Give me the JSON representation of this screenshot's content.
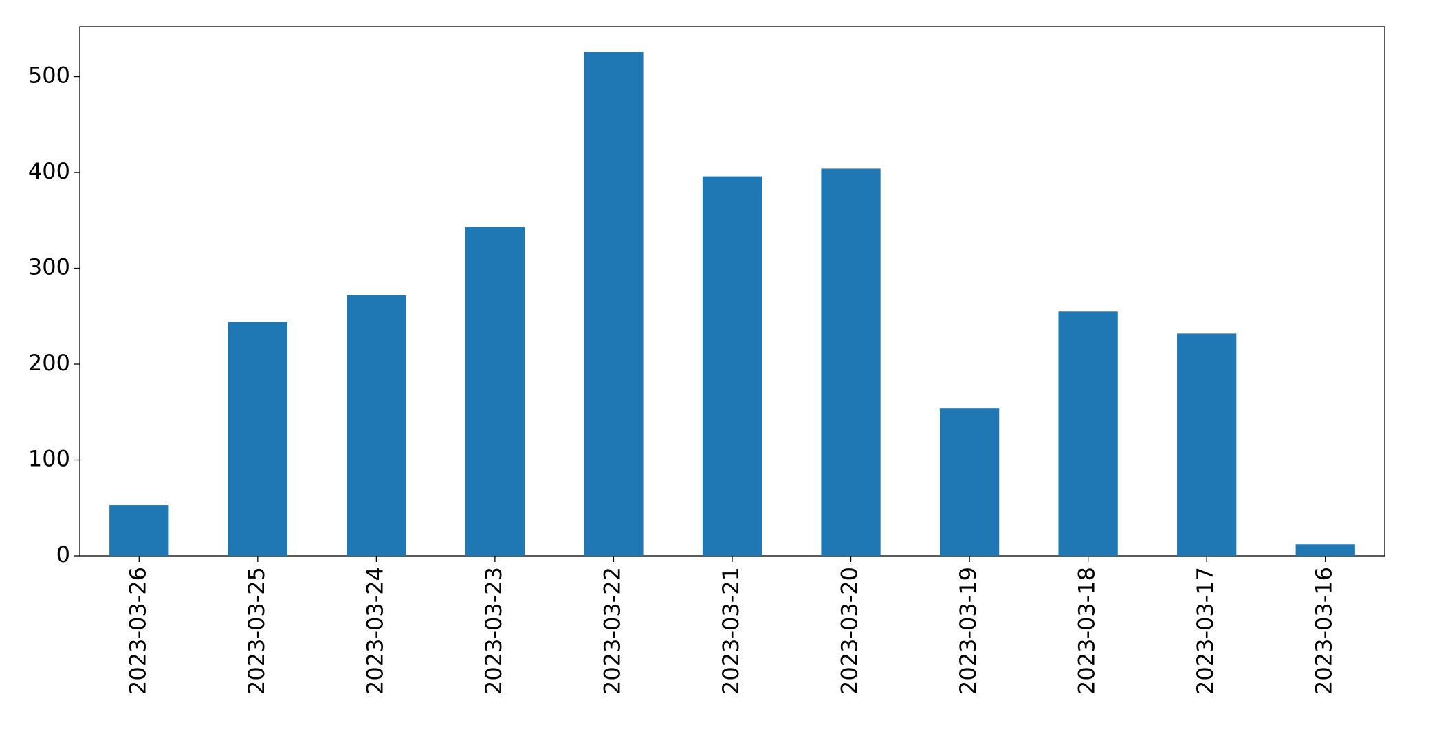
{
  "chart_data": {
    "type": "bar",
    "categories": [
      "2023-03-26",
      "2023-03-25",
      "2023-03-24",
      "2023-03-23",
      "2023-03-22",
      "2023-03-21",
      "2023-03-20",
      "2023-03-19",
      "2023-03-18",
      "2023-03-17",
      "2023-03-16"
    ],
    "values": [
      53,
      244,
      272,
      343,
      526,
      396,
      404,
      154,
      255,
      232,
      12
    ],
    "color": "#1f77b4",
    "ylim": [
      0,
      552
    ],
    "yticks": [
      0,
      100,
      200,
      300,
      400,
      500
    ],
    "grid": false
  }
}
